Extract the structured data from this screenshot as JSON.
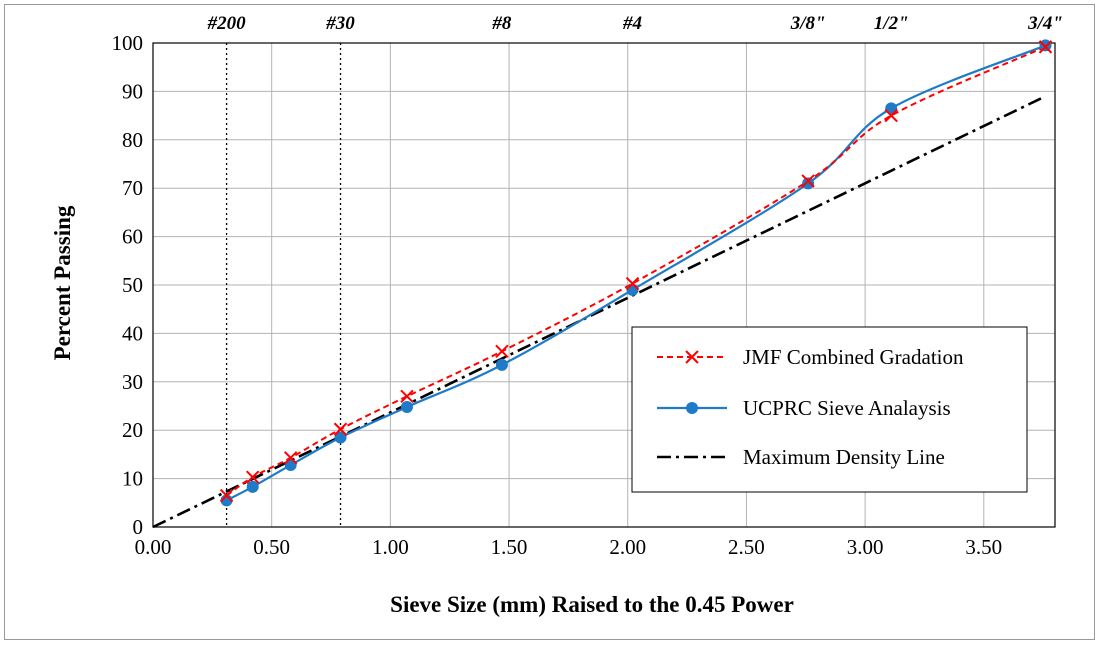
{
  "chart_data": {
    "type": "line",
    "xlabel": "Sieve Size (mm) Raised to the 0.45 Power",
    "ylabel": "Percent Passing",
    "xlim": [
      0,
      3.8
    ],
    "ylim": [
      0,
      100
    ],
    "x_ticks": [
      "0.00",
      "0.50",
      "1.00",
      "1.50",
      "2.00",
      "2.50",
      "3.00",
      "3.50"
    ],
    "x_tick_values": [
      0,
      0.5,
      1.0,
      1.5,
      2.0,
      2.5,
      3.0,
      3.5
    ],
    "y_ticks": [
      "0",
      "10",
      "20",
      "30",
      "40",
      "50",
      "60",
      "70",
      "80",
      "90",
      "100"
    ],
    "y_tick_values": [
      0,
      10,
      20,
      30,
      40,
      50,
      60,
      70,
      80,
      90,
      100
    ],
    "grid": "vertical and horizontal major gridlines",
    "legend_position": "bottom-right",
    "sieve_labels": [
      {
        "label": "#200",
        "x": 0.31
      },
      {
        "label": "#30",
        "x": 0.79
      },
      {
        "label": "#8",
        "x": 1.47
      },
      {
        "label": "#4",
        "x": 2.02
      },
      {
        "label": "3/8\"",
        "x": 2.76
      },
      {
        "label": "1/2\"",
        "x": 3.11
      },
      {
        "label": "3/4\"",
        "x": 3.76
      }
    ],
    "reference_lines_x": [
      0.31,
      0.79
    ],
    "series": [
      {
        "name": "JMF Combined Gradation",
        "color": "#ff0000",
        "style": "dashed",
        "marker": "x",
        "x": [
          0.31,
          0.42,
          0.58,
          0.79,
          1.07,
          1.47,
          2.02,
          2.76,
          3.11,
          3.76
        ],
        "y": [
          6.5,
          10.3,
          14.3,
          20.2,
          27.0,
          36.3,
          50.3,
          71.5,
          85.0,
          99.2
        ]
      },
      {
        "name": "UCPRC Sieve Analaysis",
        "color": "#1f7bc7",
        "style": "solid",
        "marker": "circle",
        "x": [
          0.31,
          0.42,
          0.58,
          0.79,
          1.07,
          1.47,
          2.02,
          2.76,
          3.11,
          3.76
        ],
        "y": [
          5.5,
          8.3,
          12.8,
          18.5,
          24.8,
          33.5,
          49.0,
          71.0,
          86.5,
          99.5
        ]
      },
      {
        "name": "Maximum Density Line",
        "color": "#000000",
        "style": "dash-dot",
        "marker": "none",
        "x": [
          0,
          3.76
        ],
        "y": [
          0,
          89
        ]
      }
    ]
  }
}
